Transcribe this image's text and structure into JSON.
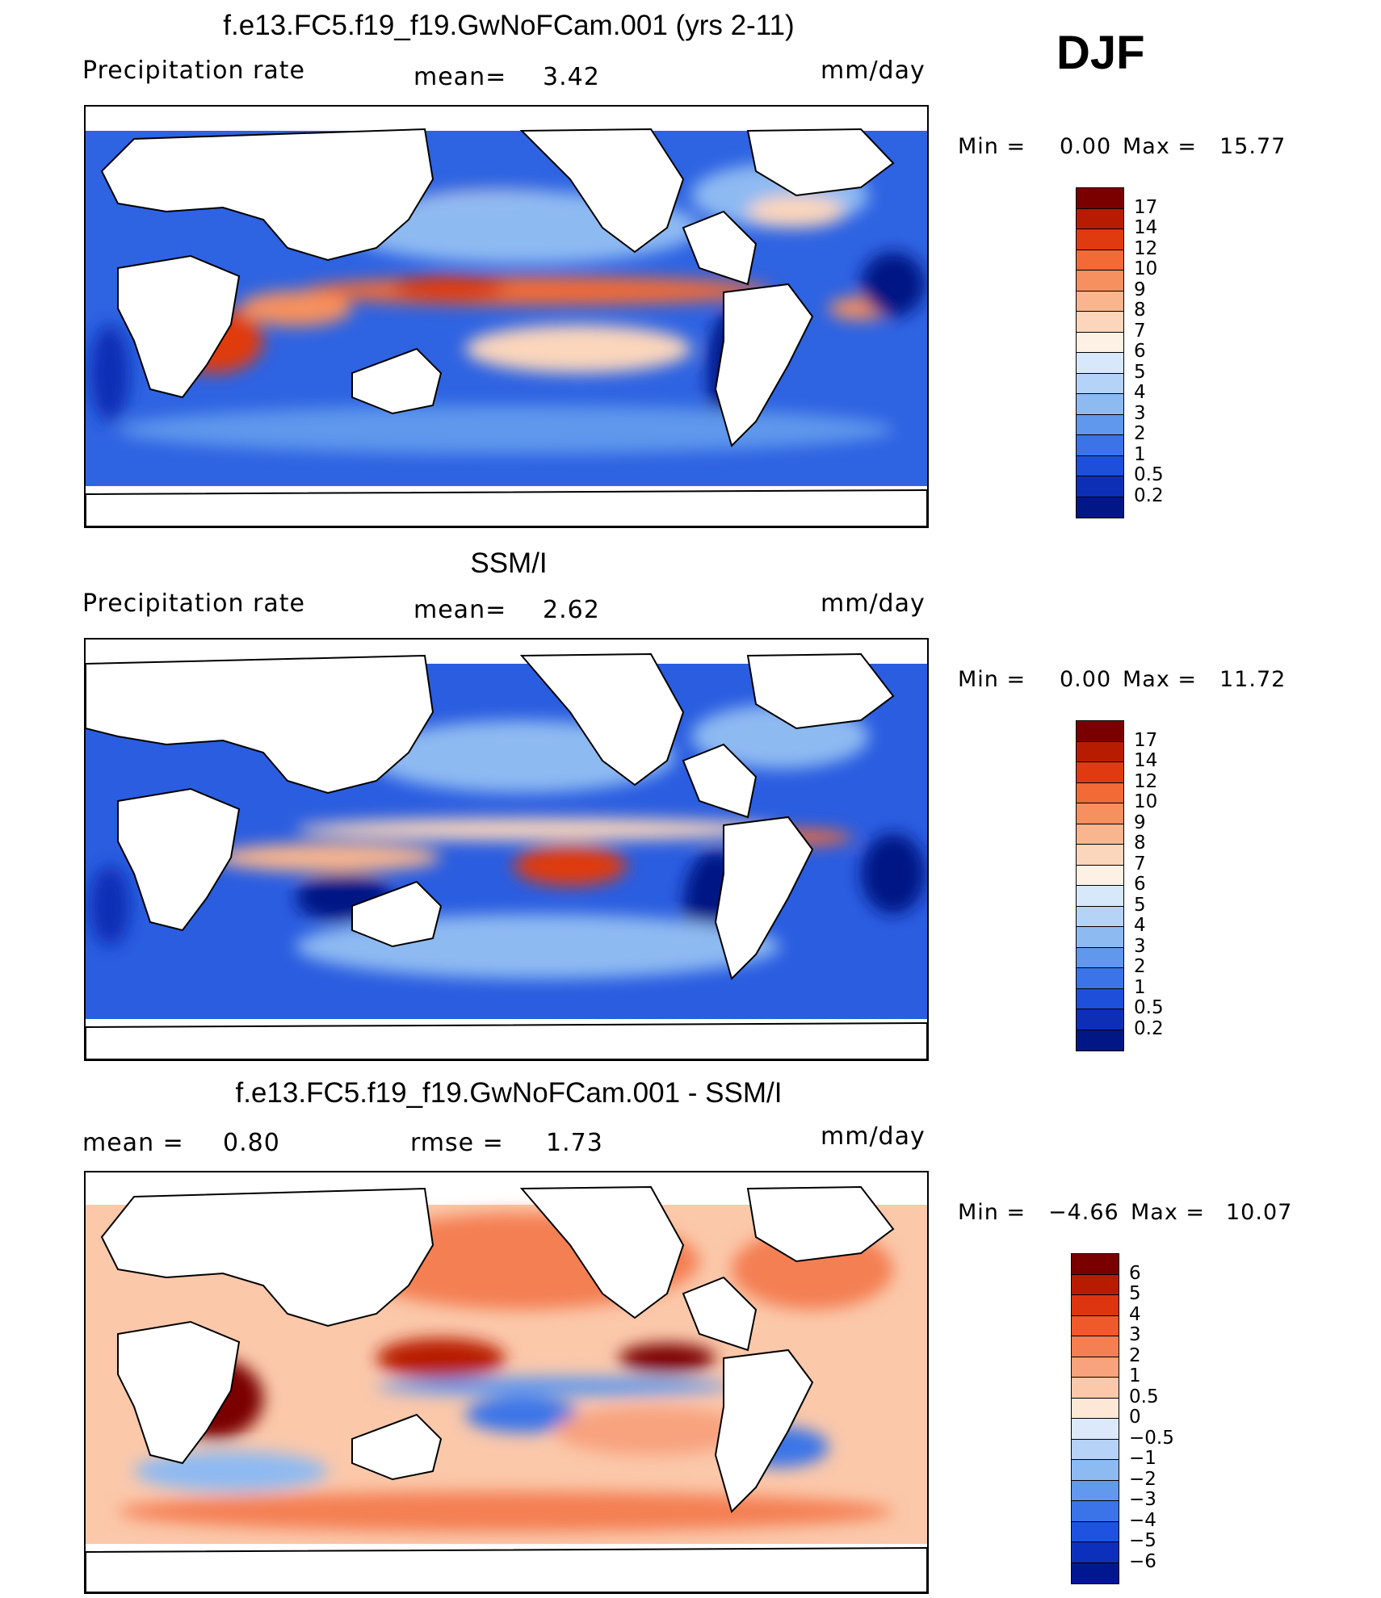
{
  "season": "DJF",
  "panels": [
    {
      "id": "model",
      "title": "f.e13.FC5.f19_f19.GwNoFCam.001 (yrs 2-11)",
      "left_label": "Precipitation  rate",
      "mean_label": "mean=",
      "mean_value": "3.42",
      "units": "mm/day",
      "min_label": "Min  =",
      "min_value": "0.00",
      "max_label": "Max  =",
      "max_value": "15.77",
      "colorbar_labels": [
        "17",
        "14",
        "12",
        "10",
        "9",
        "8",
        "7",
        "6",
        "5",
        "4",
        "3",
        "2",
        "1",
        "0.5",
        "0.2"
      ],
      "colorbar_colors": [
        "#7a0000",
        "#b81c00",
        "#e03a10",
        "#f26a35",
        "#f6905f",
        "#f8b58e",
        "#fbd6bc",
        "#fdf0e4",
        "#d8e8fb",
        "#b5d2f7",
        "#8ebaf2",
        "#5f98ec",
        "#3a74e8",
        "#1e4fdb",
        "#0d2fb6",
        "#001785"
      ]
    },
    {
      "id": "obs",
      "title": "SSM/I",
      "left_label": "Precipitation  rate",
      "mean_label": "mean=",
      "mean_value": "2.62",
      "units": "mm/day",
      "min_label": "Min  =",
      "min_value": "0.00",
      "max_label": "Max  =",
      "max_value": "11.72",
      "colorbar_labels": [
        "17",
        "14",
        "12",
        "10",
        "9",
        "8",
        "7",
        "6",
        "5",
        "4",
        "3",
        "2",
        "1",
        "0.5",
        "0.2"
      ],
      "colorbar_colors": [
        "#7a0000",
        "#b81c00",
        "#e03a10",
        "#f26a35",
        "#f6905f",
        "#f8b58e",
        "#fbd6bc",
        "#fdf0e4",
        "#d8e8fb",
        "#b5d2f7",
        "#8ebaf2",
        "#5f98ec",
        "#3a74e8",
        "#1e4fdb",
        "#0d2fb6",
        "#001785"
      ]
    },
    {
      "id": "diff",
      "title": "f.e13.FC5.f19_f19.GwNoFCam.001 - SSM/I",
      "left_label": "mean  =",
      "mean_label": "rmse  =",
      "mean_value": "1.73",
      "left_value": "0.80",
      "units": "mm/day",
      "min_label": "Min  =",
      "min_value": "−4.66",
      "max_label": "Max  =",
      "max_value": "10.07",
      "colorbar_labels": [
        "6",
        "5",
        "4",
        "3",
        "2",
        "1",
        "0.5",
        "0",
        "−0.5",
        "−1",
        "−2",
        "−3",
        "−4",
        "−5",
        "−6"
      ],
      "colorbar_colors": [
        "#7a0000",
        "#b81c00",
        "#dc3510",
        "#ee5a2a",
        "#f47f52",
        "#f8a27e",
        "#fbc8aa",
        "#fde8d8",
        "#dbe9fb",
        "#b6d2f7",
        "#8ebaf2",
        "#6298ee",
        "#3a74e8",
        "#1f52e0",
        "#0d30bc",
        "#001790"
      ]
    }
  ]
}
